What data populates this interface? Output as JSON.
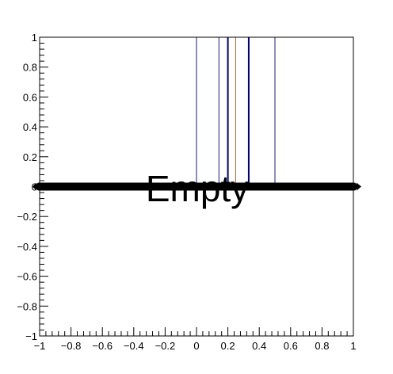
{
  "chart_data": {
    "type": "line",
    "title": "",
    "xlabel": "",
    "ylabel": "",
    "xlim": [
      -1,
      1
    ],
    "ylim": [
      -1,
      1
    ],
    "x_tick_labels": [
      "−1",
      "−0.8",
      "−0.6",
      "−0.4",
      "−0.2",
      "0",
      "0.2",
      "0.4",
      "0.6",
      "0.8",
      "1"
    ],
    "y_tick_labels": [
      "−1",
      "−0.8",
      "−0.6",
      "−0.4",
      "−0.2",
      "0",
      "0.2",
      "0.4",
      "0.6",
      "0.8",
      "1"
    ],
    "annotation": "Empty",
    "grid": false,
    "vertical_lines": [
      {
        "x": 0.0,
        "color": "#1a1a80"
      },
      {
        "x": 0.143,
        "color": "#1a1a80"
      },
      {
        "x": 0.2,
        "color": "#000080"
      },
      {
        "x": 0.25,
        "color": "#c06030"
      },
      {
        "x": 0.333,
        "color": "#000080"
      },
      {
        "x": 0.5,
        "color": "#1a1a80"
      }
    ],
    "horizontal_band": {
      "y": 0,
      "color": "#000000"
    }
  }
}
